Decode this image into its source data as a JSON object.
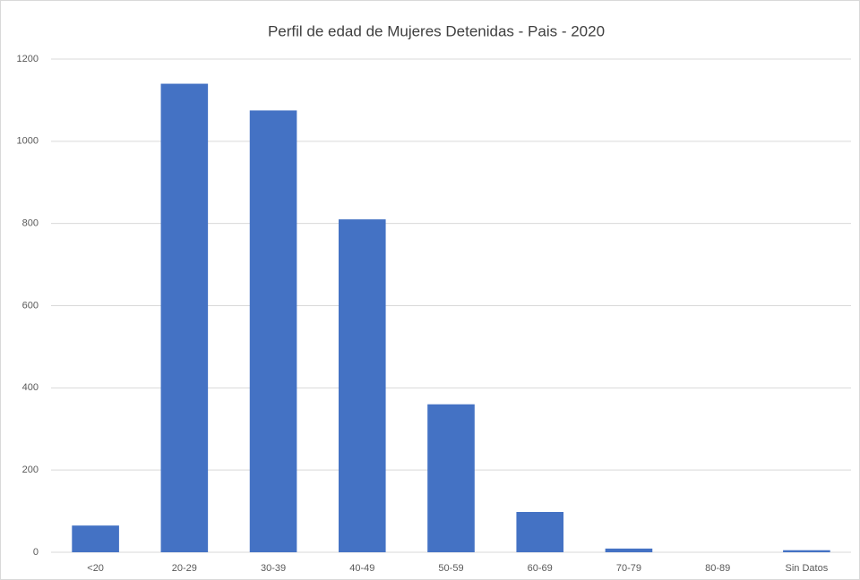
{
  "chart_data": {
    "type": "bar",
    "title": "Perfil de edad de Mujeres Detenidas - Pais - 2020",
    "categories": [
      "<20",
      "20-29",
      "30-39",
      "40-49",
      "50-59",
      "60-69",
      "70-79",
      "80-89",
      "Sin Datos"
    ],
    "values": [
      65,
      1140,
      1075,
      810,
      360,
      98,
      9,
      0,
      5
    ],
    "color": "#4472c4",
    "ylim": [
      0,
      1200
    ],
    "yticks": [
      0,
      200,
      400,
      600,
      800,
      1000,
      1200
    ],
    "grid": true
  }
}
